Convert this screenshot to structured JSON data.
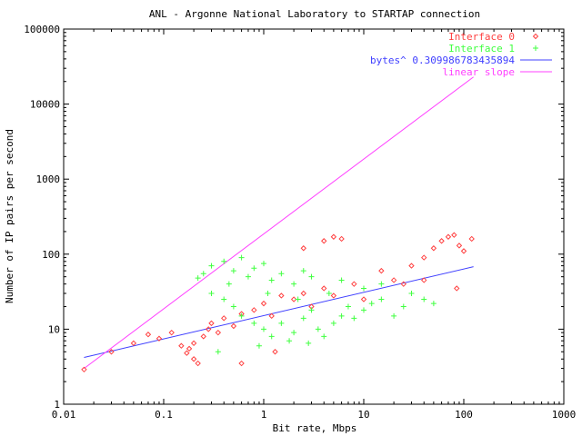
{
  "chart_data": {
    "type": "scatter",
    "title": "ANL - Argonne National Laboratory to STARTAP connection",
    "xlabel": "Bit rate, Mbps",
    "ylabel": "Number of IP pairs per second",
    "x_scale": "log",
    "y_scale": "log",
    "xlim": [
      0.01,
      1000
    ],
    "ylim": [
      1,
      100000
    ],
    "x_ticks": [
      "0.01",
      "0.1",
      "1",
      "10",
      "100",
      "1000"
    ],
    "y_ticks": [
      "1",
      "10",
      "100",
      "1000",
      "10000",
      "100000"
    ],
    "grid": false,
    "legend_position": "top-right",
    "series": [
      {
        "name": "Interface 0",
        "marker": "diamond",
        "color": "#ff4040",
        "points": [
          [
            0.016,
            2.9
          ],
          [
            0.03,
            5.0
          ],
          [
            0.05,
            6.5
          ],
          [
            0.07,
            8.5
          ],
          [
            0.09,
            7.5
          ],
          [
            0.12,
            9.0
          ],
          [
            0.15,
            6.0
          ],
          [
            0.17,
            4.8
          ],
          [
            0.18,
            5.5
          ],
          [
            0.2,
            4.0
          ],
          [
            0.2,
            6.5
          ],
          [
            0.22,
            3.5
          ],
          [
            0.25,
            8.0
          ],
          [
            0.28,
            10.0
          ],
          [
            0.3,
            12.0
          ],
          [
            0.35,
            9.0
          ],
          [
            0.4,
            14.0
          ],
          [
            0.5,
            11.0
          ],
          [
            0.6,
            16.0
          ],
          [
            0.8,
            18.0
          ],
          [
            1.0,
            22.0
          ],
          [
            1.2,
            15.0
          ],
          [
            1.5,
            28.0
          ],
          [
            2.0,
            25.0
          ],
          [
            2.5,
            30.0
          ],
          [
            3.0,
            20.0
          ],
          [
            4.0,
            35.0
          ],
          [
            5.0,
            28.0
          ],
          [
            4.0,
            150.0
          ],
          [
            5.0,
            170.0
          ],
          [
            6.0,
            160.0
          ],
          [
            2.5,
            120.0
          ],
          [
            8.0,
            40.0
          ],
          [
            10.0,
            25.0
          ],
          [
            15.0,
            60.0
          ],
          [
            20.0,
            45.0
          ],
          [
            30.0,
            70.0
          ],
          [
            40.0,
            90.0
          ],
          [
            50.0,
            120.0
          ],
          [
            60.0,
            150.0
          ],
          [
            70.0,
            170.0
          ],
          [
            80.0,
            180.0
          ],
          [
            90.0,
            130.0
          ],
          [
            100.0,
            110.0
          ],
          [
            120.0,
            160.0
          ],
          [
            85.0,
            35.0
          ],
          [
            40.0,
            45.0
          ],
          [
            25.0,
            40.0
          ],
          [
            0.6,
            3.5
          ],
          [
            1.3,
            5.0
          ]
        ]
      },
      {
        "name": "Interface 1",
        "marker": "plus",
        "color": "#40ff40",
        "points": [
          [
            0.25,
            55.0
          ],
          [
            0.3,
            70.0
          ],
          [
            0.4,
            80.0
          ],
          [
            0.5,
            60.0
          ],
          [
            0.6,
            90.0
          ],
          [
            0.7,
            50.0
          ],
          [
            0.8,
            65.0
          ],
          [
            1.0,
            75.0
          ],
          [
            1.2,
            45.0
          ],
          [
            1.5,
            55.0
          ],
          [
            2.0,
            40.0
          ],
          [
            2.5,
            60.0
          ],
          [
            3.0,
            50.0
          ],
          [
            0.3,
            30.0
          ],
          [
            0.4,
            25.0
          ],
          [
            0.5,
            20.0
          ],
          [
            0.6,
            15.0
          ],
          [
            0.8,
            12.0
          ],
          [
            1.0,
            10.0
          ],
          [
            1.2,
            8.0
          ],
          [
            1.5,
            12.0
          ],
          [
            2.0,
            9.0
          ],
          [
            2.5,
            14.0
          ],
          [
            3.0,
            18.0
          ],
          [
            3.5,
            10.0
          ],
          [
            4.0,
            8.0
          ],
          [
            5.0,
            12.0
          ],
          [
            6.0,
            15.0
          ],
          [
            7.0,
            20.0
          ],
          [
            8.0,
            14.0
          ],
          [
            10.0,
            18.0
          ],
          [
            12.0,
            22.0
          ],
          [
            15.0,
            25.0
          ],
          [
            20.0,
            15.0
          ],
          [
            25.0,
            20.0
          ],
          [
            30.0,
            30.0
          ],
          [
            40.0,
            25.0
          ],
          [
            50.0,
            22.0
          ],
          [
            10.0,
            35.0
          ],
          [
            15.0,
            40.0
          ],
          [
            0.9,
            6.0
          ],
          [
            1.8,
            7.0
          ],
          [
            2.8,
            6.5
          ],
          [
            0.35,
            5.0
          ],
          [
            4.5,
            30.0
          ],
          [
            6.0,
            45.0
          ],
          [
            0.45,
            40.0
          ],
          [
            1.1,
            30.0
          ],
          [
            2.2,
            25.0
          ],
          [
            0.22,
            48.0
          ]
        ]
      },
      {
        "name": "bytes^ 0.309986783435894",
        "marker": "line",
        "color": "#4040ff",
        "points": [
          [
            0.016,
            4.2
          ],
          [
            125.0,
            68.0
          ]
        ]
      },
      {
        "name": "linear slope",
        "marker": "line",
        "color": "#ff40ff",
        "points": [
          [
            0.016,
            3.0
          ],
          [
            125.0,
            23000.0
          ]
        ]
      }
    ]
  }
}
